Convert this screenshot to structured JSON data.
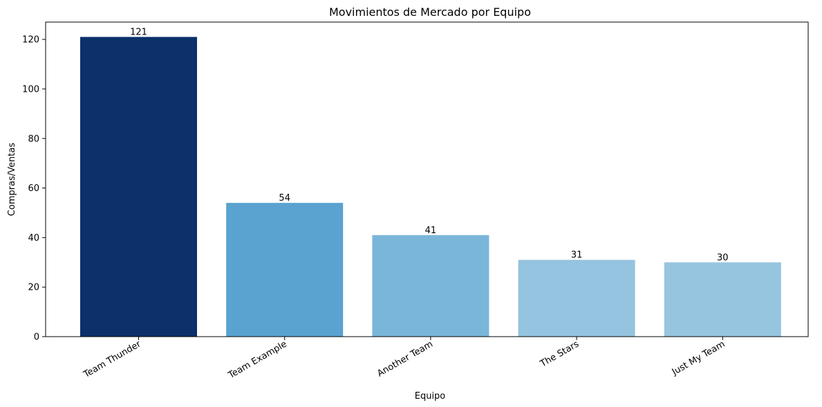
{
  "chart_data": {
    "type": "bar",
    "title": "Movimientos de Mercado por Equipo",
    "xlabel": "Equipo",
    "ylabel": "Compras/Ventas",
    "categories": [
      "Team Thunder",
      "Team Example",
      "Another Team",
      "The Stars",
      "Just My Team"
    ],
    "values": [
      121,
      54,
      41,
      31,
      30
    ],
    "bar_colors": [
      "#0b306a",
      "#5aa2cf",
      "#7ab6d9",
      "#94c4df",
      "#96c5e0"
    ],
    "ylim": [
      0,
      127
    ],
    "yticks": [
      0,
      20,
      40,
      60,
      80,
      100,
      120
    ],
    "grid": false,
    "legend": "none"
  }
}
